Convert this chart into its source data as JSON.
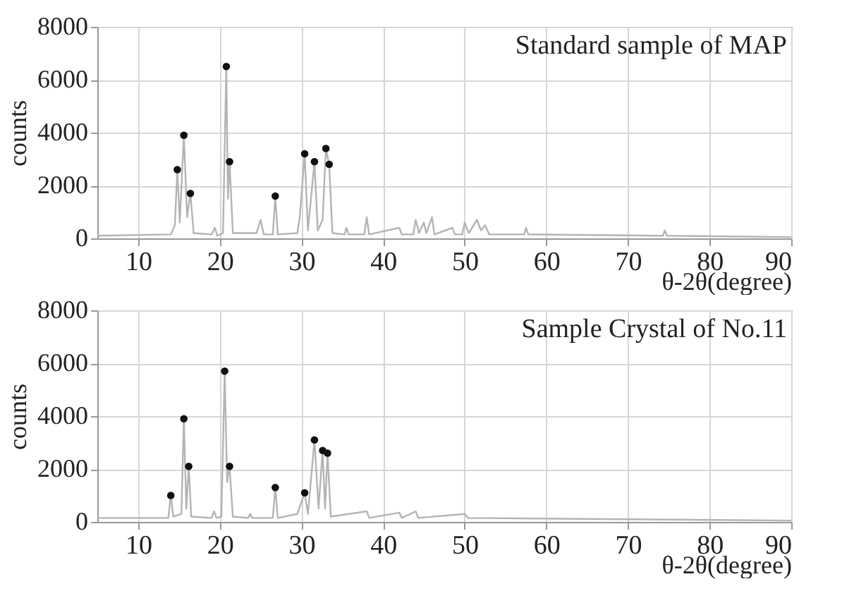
{
  "chart_data": [
    {
      "type": "line",
      "ylabel": "counts",
      "xlabel": "θ-2θ(degree)",
      "annotations": [
        "Standard sample of MAP"
      ],
      "xlim": [
        5,
        90
      ],
      "xticks": [
        10,
        20,
        30,
        40,
        50,
        60,
        70,
        80,
        90
      ],
      "ylim": [
        0,
        8000
      ],
      "yticks": [
        0,
        2000,
        4000,
        6000,
        8000
      ],
      "grid": true,
      "series": [
        {
          "type": "line",
          "color": "#b4b4b4",
          "x": [
            5,
            14,
            14.5,
            14.8,
            15.1,
            15.6,
            16.0,
            16.4,
            16.8,
            19,
            19.4,
            19.7,
            20.4,
            20.8,
            21.0,
            21.2,
            21.6,
            24.5,
            25.0,
            25.4,
            26.5,
            26.8,
            27.1,
            29.5,
            29.8,
            30.4,
            30.8,
            31.6,
            32.0,
            32.6,
            33.0,
            33.4,
            33.8,
            35.3,
            35.5,
            35.8,
            37.7,
            38,
            38.3,
            42,
            42.3,
            43.7,
            44,
            44.4,
            45,
            45.3,
            46,
            46.3,
            48.5,
            48.8,
            49.7,
            50,
            50.5,
            51.5,
            52,
            52.5,
            53,
            57.3,
            57.5,
            57.8,
            74.3,
            74.5,
            74.8,
            90
          ],
          "values": [
            100,
            150,
            500,
            2600,
            600,
            3900,
            800,
            1700,
            200,
            150,
            400,
            100,
            200,
            6500,
            1500,
            2900,
            200,
            200,
            700,
            150,
            150,
            1600,
            150,
            200,
            800,
            3200,
            300,
            2900,
            300,
            700,
            3400,
            2800,
            200,
            150,
            400,
            150,
            150,
            800,
            150,
            400,
            150,
            150,
            700,
            200,
            600,
            200,
            800,
            150,
            400,
            150,
            150,
            600,
            200,
            700,
            300,
            500,
            150,
            150,
            400,
            150,
            100,
            300,
            100,
            50
          ]
        },
        {
          "type": "scatter",
          "color": "#111111",
          "marker": "circle",
          "x": [
            14.8,
            15.6,
            16.4,
            20.8,
            21.2,
            26.8,
            30.4,
            31.6,
            33,
            33.4
          ],
          "values": [
            2600,
            3900,
            1700,
            6500,
            2900,
            1600,
            3200,
            2900,
            3400,
            2800
          ]
        }
      ]
    },
    {
      "type": "line",
      "ylabel": "counts",
      "xlabel": "θ-2θ(degree)",
      "annotations": [
        "Sample Crystal of No.11"
      ],
      "xlim": [
        5,
        90
      ],
      "xticks": [
        10,
        20,
        30,
        40,
        50,
        60,
        70,
        80,
        90
      ],
      "ylim": [
        0,
        8000
      ],
      "yticks": [
        0,
        2000,
        4000,
        6000,
        8000
      ],
      "grid": true,
      "series": [
        {
          "type": "line",
          "color": "#b4b4b4",
          "x": [
            5,
            13.7,
            14,
            14.3,
            15.3,
            15.6,
            15.9,
            16.2,
            16.5,
            19,
            19.3,
            19.6,
            20.2,
            20.6,
            20.9,
            21.2,
            21.6,
            23.5,
            23.7,
            24,
            26.5,
            26.8,
            27.1,
            29.5,
            30.4,
            30.8,
            31.6,
            32.1,
            32.6,
            32.9,
            33.2,
            33.6,
            38,
            38.3,
            42,
            42.3,
            44,
            44.3,
            50,
            50.4,
            90
          ],
          "values": [
            150,
            150,
            1000,
            200,
            300,
            3900,
            500,
            2100,
            200,
            150,
            400,
            150,
            200,
            5700,
            1500,
            2100,
            200,
            150,
            300,
            150,
            150,
            1300,
            150,
            300,
            1100,
            300,
            3100,
            500,
            2700,
            500,
            2600,
            200,
            400,
            150,
            350,
            150,
            400,
            150,
            300,
            150,
            50
          ]
        },
        {
          "type": "scatter",
          "color": "#111111",
          "marker": "circle",
          "x": [
            14,
            15.6,
            16.2,
            20.6,
            21.2,
            26.8,
            30.4,
            31.6,
            32.6,
            33.2
          ],
          "values": [
            1000,
            3900,
            2100,
            5700,
            2100,
            1300,
            1100,
            3100,
            2700,
            2600
          ]
        }
      ]
    }
  ]
}
